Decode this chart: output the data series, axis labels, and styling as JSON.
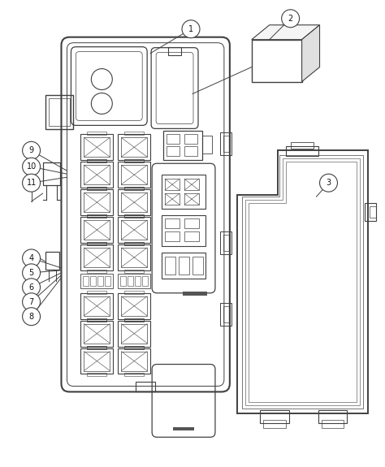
{
  "bg_color": "#ffffff",
  "line_color": "#404040",
  "label_color": "#111111",
  "figsize": [
    4.74,
    5.75
  ],
  "dpi": 100
}
